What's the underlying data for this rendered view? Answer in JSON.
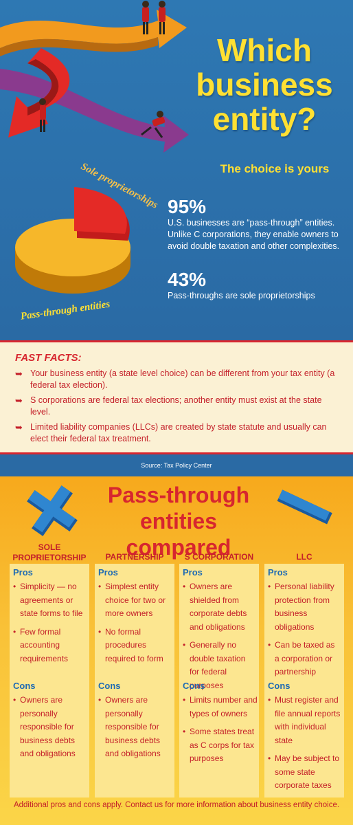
{
  "hero": {
    "title_lines": [
      "Which",
      "business",
      "entity?"
    ],
    "subtitle": "The choice is yours",
    "pie_labels": {
      "slice1": "Sole proprietorships",
      "slice2": "Pass-through entities"
    },
    "stat1": {
      "number": "95%",
      "desc": "U.S. businesses are “pass-through” entities. Unlike C corporations, they enable owners to avoid double taxation and other complexities."
    },
    "stat2": {
      "number": "43%",
      "desc": "Pass-throughs are sole proprietorships"
    }
  },
  "facts": {
    "title": "FAST FACTS:",
    "items": [
      "Your business entity (a state level choice) can be different from your tax entity (a federal tax election).",
      "S corporations are federal tax elections; another entity must exist at the state level.",
      "Limited liability companies (LLCs) are created by state statute and usually can elect their federal tax treatment."
    ],
    "source": "Source: Tax Policy Center"
  },
  "compared": {
    "title": "Pass-through entities compared",
    "pros_label": "Pros",
    "cons_label": "Cons",
    "columns": [
      {
        "heading": "SOLE PROPRIETORSHIP",
        "pros": [
          "Simplicity — no agreements or state forms to file",
          "Few formal accounting requirements"
        ],
        "cons": [
          "Owners are personally responsible for business debts and obligations"
        ]
      },
      {
        "heading": "PARTNERSHIP",
        "pros": [
          "Simplest entity choice for two or more owners",
          "No formal procedures required to form"
        ],
        "cons": [
          "Owners are personally responsible for business debts and obligations"
        ]
      },
      {
        "heading": "S CORPORATION",
        "pros": [
          "Owners are shielded from corporate debts and obligations",
          "Generally no double taxation for federal purposes"
        ],
        "cons": [
          "Limits number and types of owners",
          "Some states treat as C corps for tax purposes"
        ]
      },
      {
        "heading": "LLC",
        "pros": [
          "Personal liability protection from business obligations",
          "Can be taxed as a corporation or partnership"
        ],
        "cons": [
          "Must register and file annual reports with individual state",
          "May be subject to some state corporate taxes"
        ]
      }
    ],
    "footer": "Additional pros and cons apply. Contact us for more information about business entity choice."
  },
  "colors": {
    "hero_bg": "#2e78b3",
    "title_yellow": "#ffe033",
    "brand_red": "#d7262f",
    "pros_blue": "#1f6bb3",
    "panel_cream": "#fbf1d4"
  }
}
